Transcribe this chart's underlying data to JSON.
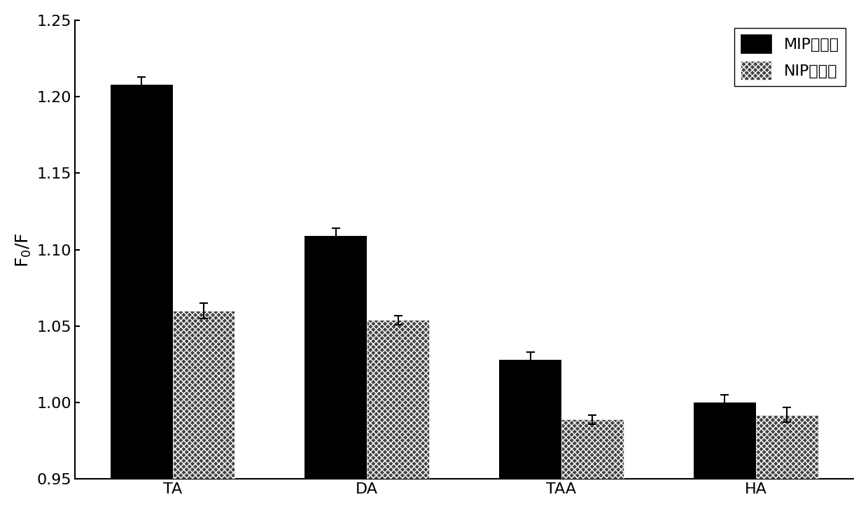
{
  "categories": [
    "TA",
    "DA",
    "TAA",
    "HA"
  ],
  "mip_values": [
    1.208,
    1.109,
    1.028,
    1.0
  ],
  "nip_values": [
    1.06,
    1.054,
    0.989,
    0.992
  ],
  "mip_errors": [
    0.005,
    0.005,
    0.005,
    0.005
  ],
  "nip_errors": [
    0.005,
    0.003,
    0.003,
    0.005
  ],
  "mip_label": "MIP试纸条",
  "nip_label": "NIP试纸条",
  "ylabel": "F$_0$/F",
  "ylim": [
    0.95,
    1.25
  ],
  "yticks": [
    0.95,
    1.0,
    1.05,
    1.1,
    1.15,
    1.2,
    1.25
  ],
  "bar_width": 0.32,
  "mip_color": "#000000",
  "nip_facecolor": "#444444",
  "background_color": "#ffffff",
  "label_fontsize": 18,
  "tick_fontsize": 16,
  "legend_fontsize": 16
}
